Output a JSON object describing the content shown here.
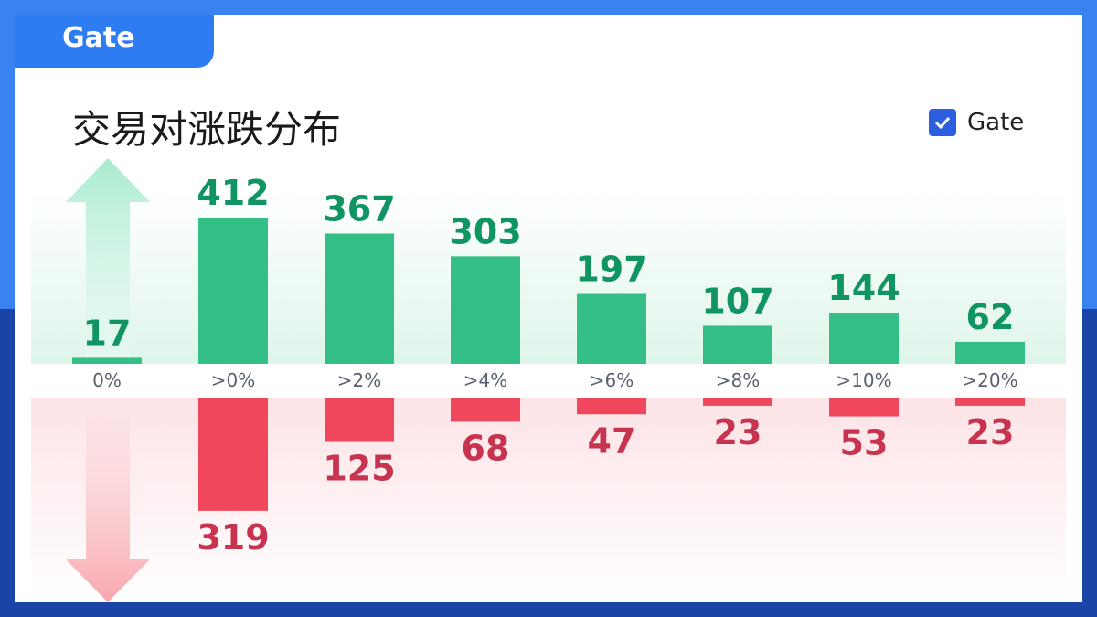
{
  "brand": {
    "logo_text": "Gate"
  },
  "header": {
    "title": "交易对涨跌分布"
  },
  "legend": {
    "label": "Gate",
    "checked": true
  },
  "colors": {
    "up": "#33bf85",
    "down": "#f0475c",
    "up_text": "#0f9462",
    "down_text": "#c8334f"
  },
  "chart_data": {
    "type": "bar",
    "title": "交易对涨跌分布",
    "categories": [
      "0%",
      ">0%",
      ">2%",
      ">4%",
      ">6%",
      ">8%",
      ">10%",
      ">20%"
    ],
    "series": [
      {
        "name": "up",
        "values": [
          17,
          412,
          367,
          303,
          197,
          107,
          144,
          62
        ]
      },
      {
        "name": "down",
        "values": [
          null,
          319,
          125,
          68,
          47,
          23,
          53,
          23
        ]
      }
    ],
    "xlabel": "",
    "ylabel": ""
  }
}
